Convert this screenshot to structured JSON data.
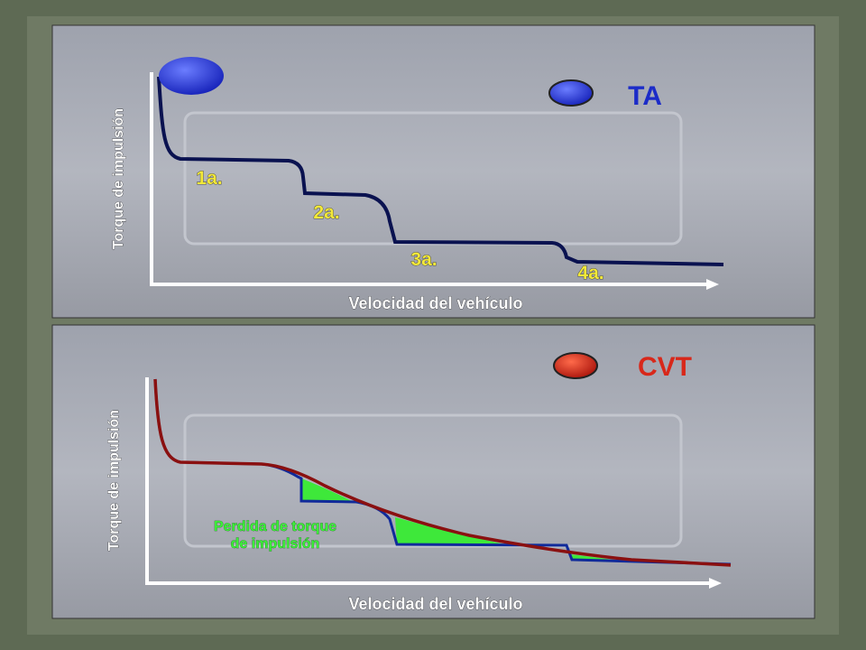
{
  "panels": [
    {
      "legend": "TA",
      "y_axis_label": "Torque de impulsión",
      "x_axis_label": "Velocidad del vehículo",
      "gear_labels": [
        "1a.",
        "2a.",
        "3a.",
        "4a."
      ]
    },
    {
      "legend": "CVT",
      "y_axis_label": "Torque de impulsión",
      "x_axis_label": "Velocidad del vehículo",
      "annotation": [
        "Perdida de torque",
        "de impulsión"
      ]
    }
  ]
}
